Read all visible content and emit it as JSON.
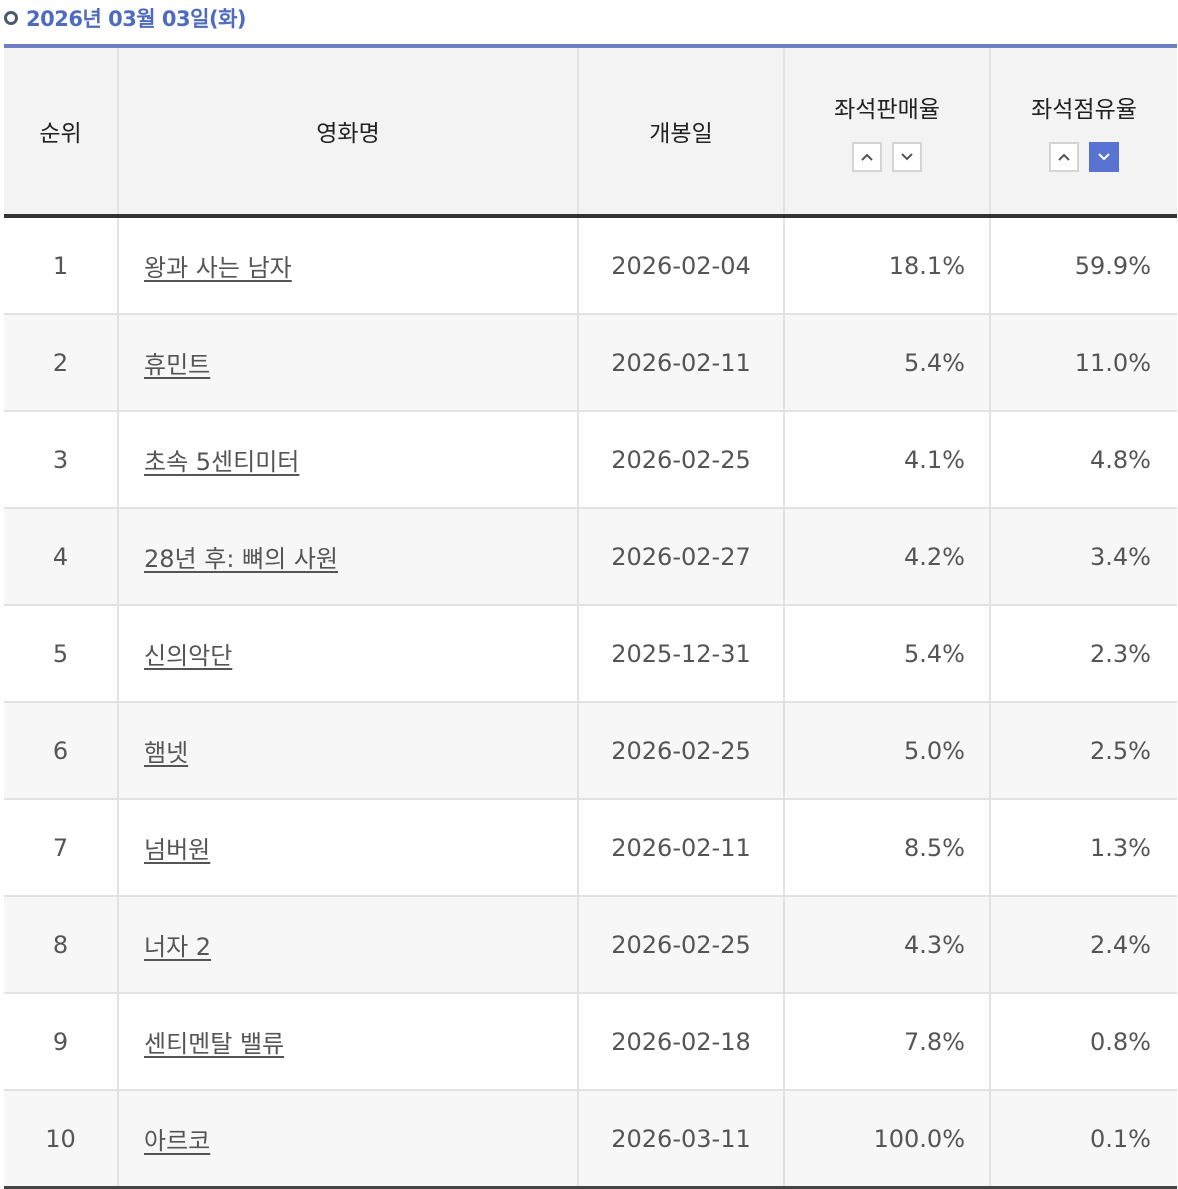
{
  "header": {
    "date": "2026년 03월 03일(화)"
  },
  "table": {
    "columns": {
      "rank": "순위",
      "title": "영화명",
      "release": "개봉일",
      "seat_sales": "좌석판매율",
      "seat_share": "좌석점유율"
    },
    "sort_icons": {
      "up": "chevron-up-icon",
      "down": "chevron-down-icon"
    },
    "rows": [
      {
        "rank": "1",
        "title": "왕과 사는 남자",
        "release": "2026-02-04",
        "seat_sales": "18.1%",
        "seat_share": "59.9%"
      },
      {
        "rank": "2",
        "title": "휴민트",
        "release": "2026-02-11",
        "seat_sales": "5.4%",
        "seat_share": "11.0%"
      },
      {
        "rank": "3",
        "title": "초속 5센티미터",
        "release": "2026-02-25",
        "seat_sales": "4.1%",
        "seat_share": "4.8%"
      },
      {
        "rank": "4",
        "title": "28년 후: 뼈의 사원",
        "release": "2026-02-27",
        "seat_sales": "4.2%",
        "seat_share": "3.4%"
      },
      {
        "rank": "5",
        "title": "신의악단",
        "release": "2025-12-31",
        "seat_sales": "5.4%",
        "seat_share": "2.3%"
      },
      {
        "rank": "6",
        "title": "햄넷",
        "release": "2026-02-25",
        "seat_sales": "5.0%",
        "seat_share": "2.5%"
      },
      {
        "rank": "7",
        "title": "넘버원",
        "release": "2026-02-11",
        "seat_sales": "8.5%",
        "seat_share": "1.3%"
      },
      {
        "rank": "8",
        "title": "너자 2",
        "release": "2026-02-25",
        "seat_sales": "4.3%",
        "seat_share": "2.4%"
      },
      {
        "rank": "9",
        "title": "센티멘탈 밸류",
        "release": "2026-02-18",
        "seat_sales": "7.8%",
        "seat_share": "0.8%"
      },
      {
        "rank": "10",
        "title": "아르코",
        "release": "2026-03-11",
        "seat_sales": "100.0%",
        "seat_share": "0.1%"
      }
    ]
  },
  "colors": {
    "accent": "#5873d1",
    "date_text": "#4e6bbf",
    "header_bg": "#f3f3f3"
  }
}
